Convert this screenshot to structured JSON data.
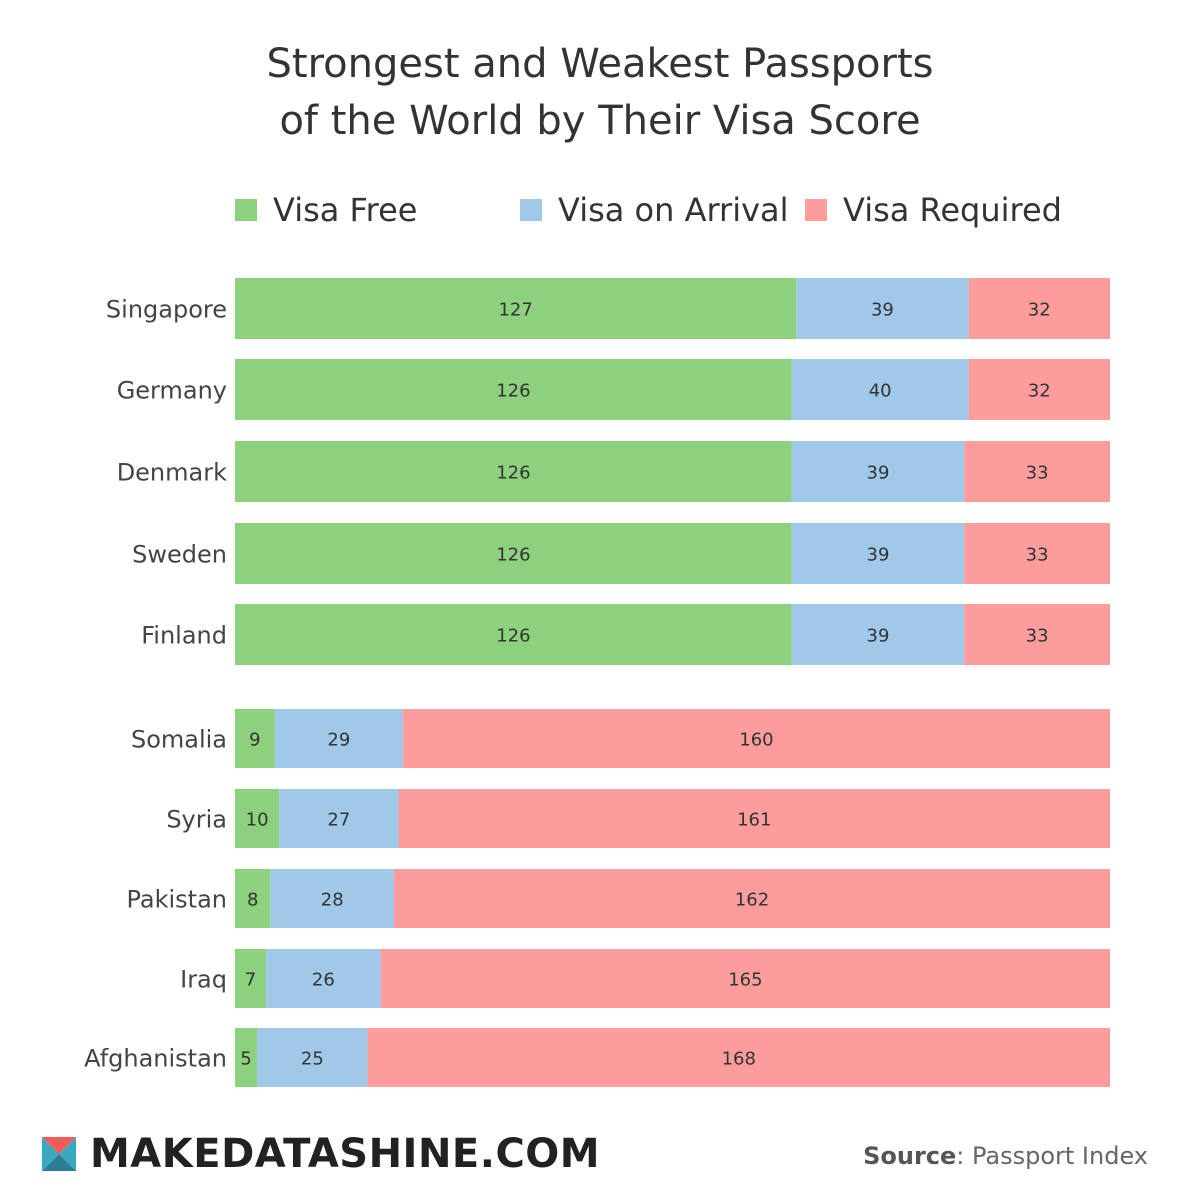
{
  "title_lines": [
    "Strongest and Weakest Passports",
    "of the World by Their Visa Score"
  ],
  "colors": {
    "visa_free": "#8dd17e",
    "visa_on_arrival": "#a0c8e8",
    "visa_required": "#fc9c9c",
    "text": "#333333"
  },
  "footer": {
    "brand": "MAKEDATASHINE.COM",
    "source_label": "Source",
    "source_value": ": Passport Index",
    "logo_icon": "makedatashine-logo-icon"
  },
  "chart_data": {
    "type": "bar",
    "orientation": "horizontal",
    "stacked": true,
    "legend_position": "top",
    "grid": false,
    "categories": [
      "Singapore",
      "Germany",
      "Denmark",
      "Sweden",
      "Finland",
      "Somalia",
      "Syria",
      "Pakistan",
      "Iraq",
      "Afghanistan"
    ],
    "series": [
      {
        "name": "Visa Free",
        "values": [
          127,
          126,
          126,
          126,
          126,
          9,
          10,
          8,
          7,
          5
        ]
      },
      {
        "name": "Visa on Arrival",
        "values": [
          39,
          40,
          39,
          39,
          39,
          29,
          27,
          28,
          26,
          25
        ]
      },
      {
        "name": "Visa Required",
        "values": [
          32,
          32,
          33,
          33,
          33,
          160,
          161,
          162,
          165,
          168
        ]
      }
    ],
    "groups": [
      {
        "rows": [
          0,
          1,
          2,
          3,
          4
        ]
      },
      {
        "rows": [
          5,
          6,
          7,
          8,
          9
        ]
      }
    ]
  }
}
